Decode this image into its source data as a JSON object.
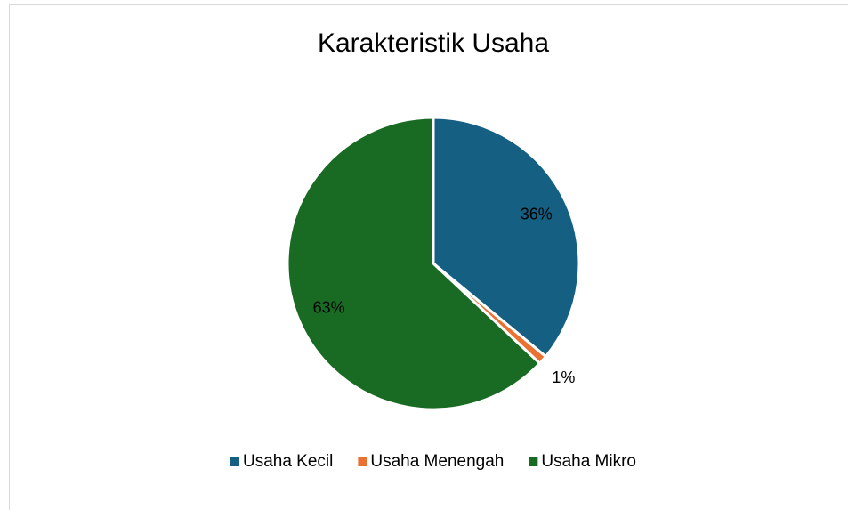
{
  "chart_data": {
    "type": "pie",
    "title": "Karakteristik Usaha",
    "categories": [
      "Usaha Kecil",
      "Usaha Menengah",
      "Usaha Mikro"
    ],
    "values": [
      36,
      1,
      63
    ],
    "value_labels": [
      "36%",
      "1%",
      "63%"
    ],
    "colors": [
      "#155f82",
      "#e97132",
      "#196b24"
    ],
    "legend": "bottom"
  }
}
